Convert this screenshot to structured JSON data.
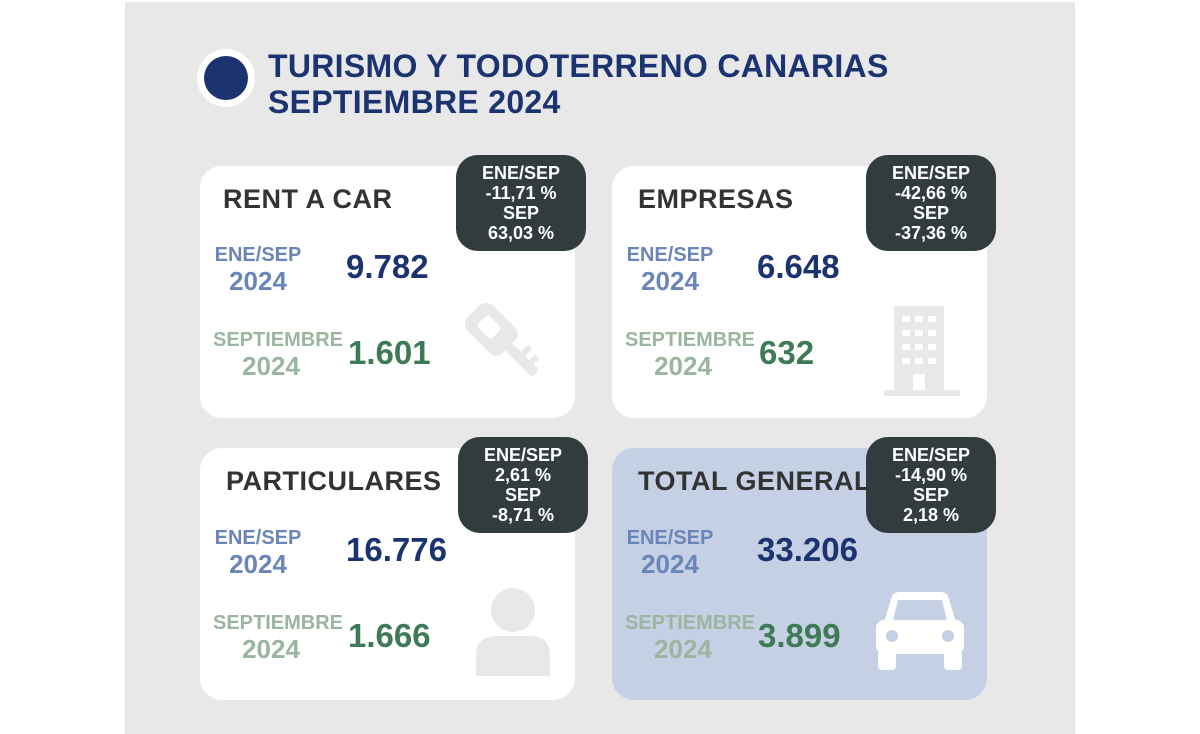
{
  "header": {
    "title_line1": "TURISMO Y TODOTERRENO CANARIAS",
    "title_line2": "SEPTIEMBRE 2024"
  },
  "colors": {
    "brand_navy": "#1b3370",
    "label_blue": "#6a86b8",
    "label_green": "#9bb5a0",
    "value_green": "#3f7a57",
    "badge_bg": "#323c3f",
    "total_card_bg": "#c5d0e4",
    "panel_bg": "#e8e8e8"
  },
  "cards": [
    {
      "title": "RENT A CAR",
      "ytd_label": "ENE/SEP",
      "ytd_year": "2024",
      "ytd_value": "9.782",
      "month_label": "SEPTIEMBRE",
      "month_year": "2024",
      "month_value": "1.601",
      "badge": {
        "l1": "ENE/SEP",
        "l2": "-11,71 %",
        "l3": "SEP",
        "l4": "63,03 %"
      },
      "icon": "car-key-icon"
    },
    {
      "title": "EMPRESAS",
      "ytd_label": "ENE/SEP",
      "ytd_year": "2024",
      "ytd_value": "6.648",
      "month_label": "SEPTIEMBRE",
      "month_year": "2024",
      "month_value": "632",
      "badge": {
        "l1": "ENE/SEP",
        "l2": "-42,66 %",
        "l3": "SEP",
        "l4": "-37,36 %"
      },
      "icon": "office-building-icon"
    },
    {
      "title": "PARTICULARES",
      "ytd_label": "ENE/SEP",
      "ytd_year": "2024",
      "ytd_value": "16.776",
      "month_label": "SEPTIEMBRE",
      "month_year": "2024",
      "month_value": "1.666",
      "badge": {
        "l1": "ENE/SEP",
        "l2": "2,61 %",
        "l3": "SEP",
        "l4": "-8,71 %"
      },
      "icon": "person-icon"
    },
    {
      "title": "TOTAL GENERAL",
      "ytd_label": "ENE/SEP",
      "ytd_year": "2024",
      "ytd_value": "33.206",
      "month_label": "SEPTIEMBRE",
      "month_year": "2024",
      "month_value": "3.899",
      "badge": {
        "l1": "ENE/SEP",
        "l2": "-14,90 %",
        "l3": "SEP",
        "l4": "2,18 %"
      },
      "icon": "car-icon"
    }
  ]
}
